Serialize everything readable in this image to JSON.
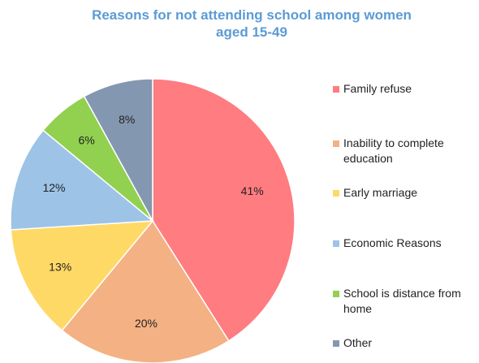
{
  "chart_data": {
    "type": "pie",
    "title": "Reasons for not attending school among women aged 15-49",
    "title_lines": [
      "Reasons for not attending school among women",
      "aged 15-49"
    ],
    "categories": [
      "Family refuse",
      "Inability to complete education",
      "Early marriage",
      "Economic Reasons",
      "School is distance from home",
      "Other"
    ],
    "legend_lines": [
      [
        "Family refuse"
      ],
      [
        "Inability to complete",
        "education"
      ],
      [
        "Early marriage"
      ],
      [
        "Economic Reasons"
      ],
      [
        "School is distance from",
        "home"
      ],
      [
        "Other"
      ]
    ],
    "values": [
      41,
      20,
      13,
      12,
      6,
      8
    ],
    "labels": [
      "41%",
      "20%",
      "13%",
      "12%",
      "6%",
      "8%"
    ],
    "colors": [
      "#ff7c80",
      "#f4b183",
      "#ffd966",
      "#9dc3e6",
      "#92d050",
      "#8497b0"
    ],
    "legend_position": "right"
  }
}
